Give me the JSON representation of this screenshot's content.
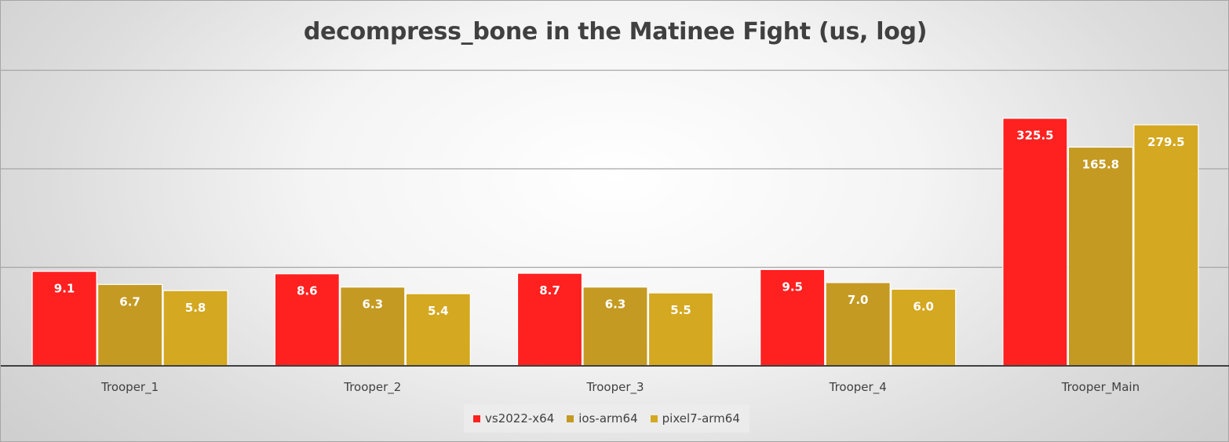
{
  "chart_data": {
    "type": "bar",
    "title": "decompress_bone in the Matinee Fight (us, log)",
    "xlabel": "",
    "ylabel": "",
    "log_scale": true,
    "log_base": 10,
    "ylim": [
      1,
      1000
    ],
    "grid": true,
    "legend_position": "bottom",
    "categories": [
      "Trooper_1",
      "Trooper_2",
      "Trooper_3",
      "Trooper_4",
      "Trooper_Main"
    ],
    "series": [
      {
        "name": "vs2022-x64",
        "color": "#ff2020",
        "values": [
          9.1,
          8.6,
          8.7,
          9.5,
          325.5
        ],
        "labels": [
          "9.1",
          "8.6",
          "8.7",
          "9.5",
          "325.5"
        ]
      },
      {
        "name": "ios-arm64",
        "color": "#c49a22",
        "values": [
          6.7,
          6.3,
          6.3,
          7.0,
          165.8
        ],
        "labels": [
          "6.7",
          "6.3",
          "6.3",
          "7.0",
          "165.8"
        ]
      },
      {
        "name": "pixel7-arm64",
        "color": "#d4a820",
        "values": [
          5.8,
          5.4,
          5.5,
          6.0,
          279.5
        ],
        "labels": [
          "5.8",
          "5.4",
          "5.5",
          "6.0",
          "279.5"
        ]
      }
    ]
  }
}
